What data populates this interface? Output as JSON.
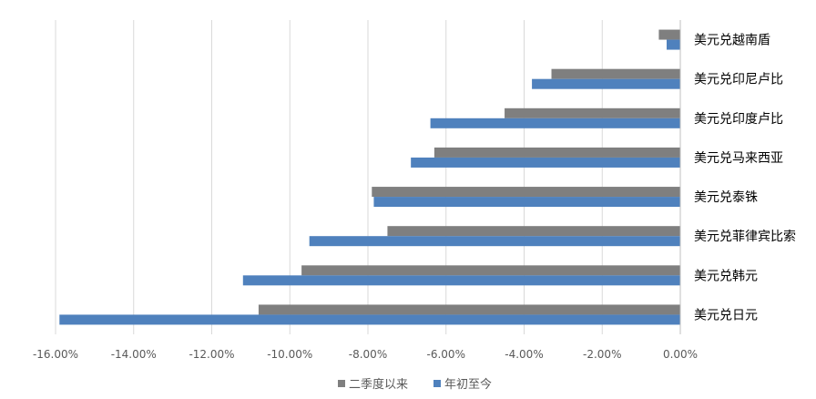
{
  "chart_data": {
    "type": "bar",
    "orientation": "horizontal",
    "title": "",
    "xlabel": "",
    "ylabel": "",
    "categories": [
      "美元兑越南盾",
      "美元兑印尼卢比",
      "美元兑印度卢比",
      "美元兑马来西亚",
      "美元兑泰铢",
      "美元兑菲律宾比索",
      "美元兑韩元",
      "美元兑日元"
    ],
    "series": [
      {
        "name": "二季度以来",
        "color": "#7f7f7f",
        "values": [
          -0.55,
          -3.3,
          -4.5,
          -6.3,
          -7.9,
          -7.5,
          -9.7,
          -10.8
        ]
      },
      {
        "name": "年初至今",
        "color": "#4f81bd",
        "values": [
          -0.35,
          -3.8,
          -6.4,
          -6.9,
          -7.85,
          -9.5,
          -11.2,
          -15.9
        ]
      }
    ],
    "xlim": [
      -16,
      0
    ],
    "xticks": [
      "-16.00%",
      "-14.00%",
      "-12.00%",
      "-10.00%",
      "-8.00%",
      "-6.00%",
      "-4.00%",
      "-2.00%",
      "0.00%"
    ],
    "grid": true,
    "legend_position": "bottom"
  }
}
